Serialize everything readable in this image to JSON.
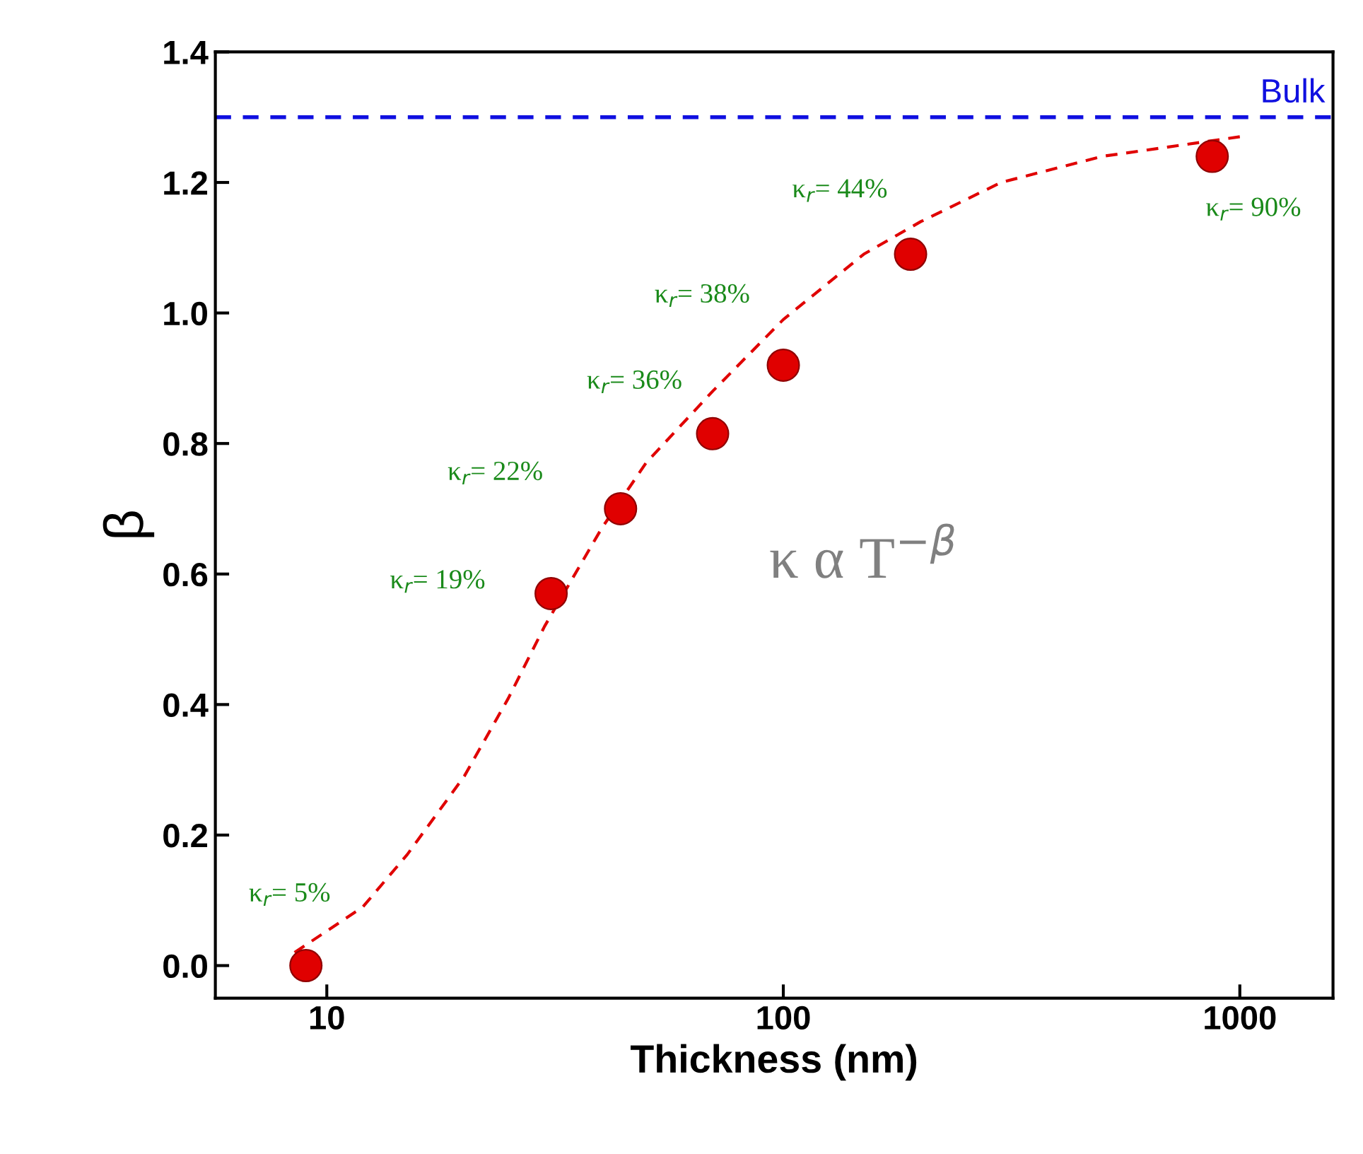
{
  "chart_data": {
    "type": "scatter",
    "xlabel": "Thickness (nm)",
    "ylabel": "β",
    "log": "x",
    "xlim": [
      5.7,
      1600
    ],
    "ylim": [
      -0.05,
      1.4
    ],
    "xticks": [
      10,
      100,
      1000
    ],
    "yticks": [
      {
        "value": 0,
        "label": "0.0"
      },
      {
        "value": 0.2,
        "label": "0.2"
      },
      {
        "value": 0.4,
        "label": "0.4"
      },
      {
        "value": 0.6,
        "label": "0.6"
      },
      {
        "value": 0.8,
        "label": "0.8"
      },
      {
        "value": 1.0,
        "label": "1.0"
      },
      {
        "value": 1.2,
        "label": "1.2"
      },
      {
        "value": 1.4,
        "label": "1.4"
      }
    ],
    "grid": false,
    "marker": "circle",
    "series": [
      {
        "color": "#e00000",
        "x": [
          9,
          31,
          44,
          70,
          100,
          190,
          870
        ],
        "values": [
          0.0,
          0.57,
          0.7,
          0.815,
          0.92,
          1.09,
          1.24
        ]
      },
      {
        "type": "line",
        "color": "#e00000",
        "line_style": "dashed",
        "marker": "none",
        "x": [
          8.5,
          12,
          15,
          20,
          25,
          30,
          40,
          50,
          70,
          100,
          150,
          200,
          300,
          500,
          1000
        ],
        "values": [
          0.02,
          0.09,
          0.17,
          0.29,
          0.41,
          0.52,
          0.67,
          0.77,
          0.88,
          0.99,
          1.09,
          1.14,
          1.2,
          1.24,
          1.27
        ]
      }
    ],
    "ref_lines": [
      {
        "axis": "y",
        "value": 1.3,
        "label": "Bulk",
        "color": "#1010e0",
        "line_style": "dashed"
      }
    ],
    "annotations": [
      {
        "text": "κ$_{r}$= 5%",
        "x": 9,
        "y": 0.0
      },
      {
        "text": "κ$_{r}$= 19%",
        "x": 31,
        "y": 0.57
      },
      {
        "text": "κ$_{r}$= 22%",
        "x": 44,
        "y": 0.7
      },
      {
        "text": "κ$_{r}$= 36%",
        "x": 70,
        "y": 0.815
      },
      {
        "text": "κ$_{r}$= 38%",
        "x": 100,
        "y": 0.92
      },
      {
        "text": "κ$_{r}$= 44%",
        "x": 190,
        "y": 1.09
      },
      {
        "text": "κ$_{r}$= 90%",
        "x": 870,
        "y": 1.24
      },
      "κ α T$^{−β}$"
    ]
  }
}
